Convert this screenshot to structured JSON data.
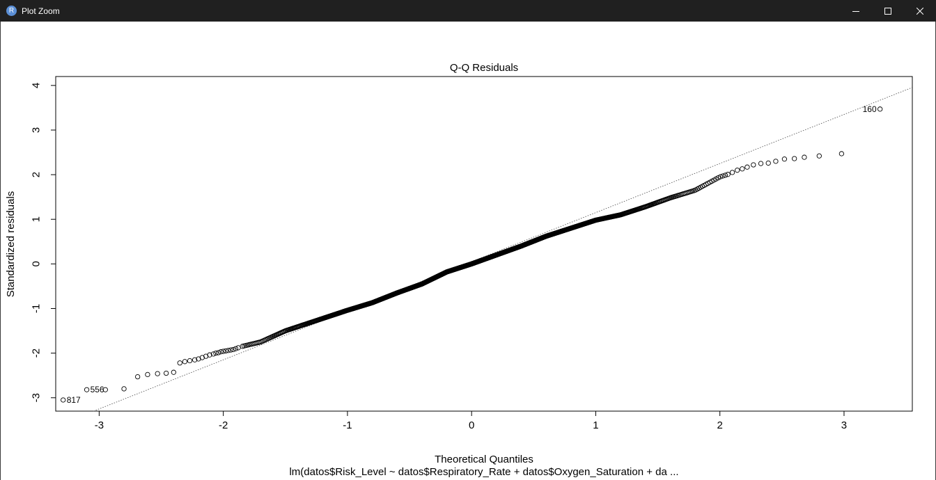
{
  "window": {
    "title": "Plot Zoom",
    "icon": "r-logo-icon",
    "icon_letter": "R",
    "controls": [
      "minimize",
      "maximize",
      "close"
    ]
  },
  "chart_data": {
    "type": "scatter",
    "title": "Q-Q Residuals",
    "xlabel": "Theoretical Quantiles",
    "ylabel": "Standardized residuals",
    "subtitle": "lm(datos$Risk_Level ~ datos$Respiratory_Rate + datos$Oxygen_Saturation + da ...",
    "xlim": [
      -3.35,
      3.55
    ],
    "ylim": [
      -3.3,
      4.2
    ],
    "xticks": [
      -3,
      -2,
      -1,
      0,
      1,
      2,
      3
    ],
    "yticks": [
      -3,
      -2,
      -1,
      0,
      1,
      2,
      3,
      4
    ],
    "reference_line": {
      "style": "dotted",
      "slope": 1.1,
      "intercept": 0.05
    },
    "marker": "open-circle",
    "n_points": 1000,
    "series": [
      {
        "points": [
          [
            -3.29,
            -3.05
          ],
          [
            -3.1,
            -2.82
          ],
          [
            -2.95,
            -2.82
          ],
          [
            -2.8,
            -2.8
          ],
          [
            -2.69,
            -2.53
          ],
          [
            -2.61,
            -2.48
          ],
          [
            -2.53,
            -2.46
          ],
          [
            -2.46,
            -2.45
          ],
          [
            -2.4,
            -2.43
          ],
          [
            -2.35,
            -2.22
          ],
          [
            -2.31,
            -2.19
          ],
          [
            -2.27,
            -2.17
          ],
          [
            -2.23,
            -2.15
          ],
          [
            -2.2,
            -2.13
          ],
          [
            -2.17,
            -2.1
          ],
          [
            -2.14,
            -2.07
          ],
          [
            -2.11,
            -2.04
          ],
          [
            -2.08,
            -2.02
          ],
          [
            -2.06,
            -2.0
          ],
          [
            -2.04,
            -1.99
          ],
          [
            -2.02,
            -1.97
          ],
          [
            -2.0,
            -1.96
          ],
          [
            -1.98,
            -1.95
          ],
          [
            -1.96,
            -1.94
          ],
          [
            -1.94,
            -1.93
          ],
          [
            -1.92,
            -1.92
          ],
          [
            -1.9,
            -1.9
          ],
          [
            -1.88,
            -1.88
          ]
        ],
        "labels": [
          {
            "x": -3.29,
            "y": -3.05,
            "text": "817",
            "side": "right"
          },
          {
            "x": -3.1,
            "y": -2.82,
            "text": "556",
            "side": "right"
          }
        ]
      },
      {
        "knots": [
          [
            -1.85,
            -1.85
          ],
          [
            -1.7,
            -1.75
          ],
          [
            -1.5,
            -1.5
          ],
          [
            -1.25,
            -1.27
          ],
          [
            -1.0,
            -1.04
          ],
          [
            -0.8,
            -0.87
          ],
          [
            -0.6,
            -0.65
          ],
          [
            -0.4,
            -0.45
          ],
          [
            -0.2,
            -0.18
          ],
          [
            0.0,
            0.0
          ],
          [
            0.2,
            0.2
          ],
          [
            0.4,
            0.4
          ],
          [
            0.6,
            0.62
          ],
          [
            0.8,
            0.8
          ],
          [
            1.0,
            0.98
          ],
          [
            1.2,
            1.1
          ],
          [
            1.4,
            1.28
          ],
          [
            1.6,
            1.48
          ],
          [
            1.8,
            1.65
          ],
          [
            2.0,
            1.95
          ],
          [
            2.08,
            2.02
          ]
        ]
      },
      {
        "points": [
          [
            2.1,
            2.05
          ],
          [
            2.14,
            2.1
          ],
          [
            2.18,
            2.13
          ],
          [
            2.22,
            2.17
          ],
          [
            2.27,
            2.22
          ],
          [
            2.33,
            2.25
          ],
          [
            2.39,
            2.26
          ],
          [
            2.45,
            2.3
          ],
          [
            2.52,
            2.35
          ],
          [
            2.6,
            2.36
          ],
          [
            2.68,
            2.39
          ],
          [
            2.8,
            2.42
          ],
          [
            2.98,
            2.47
          ],
          [
            3.29,
            3.47
          ]
        ],
        "labels": [
          {
            "x": 3.29,
            "y": 3.47,
            "text": "160",
            "side": "left"
          }
        ]
      }
    ]
  }
}
